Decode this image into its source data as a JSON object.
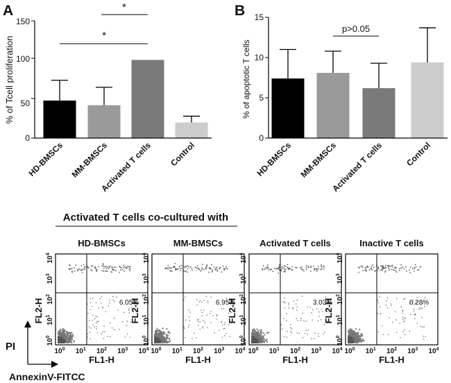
{
  "panel_a": {
    "letter": "A",
    "ylabel": "% of Tcell proliferation",
    "ticks": [
      "0",
      "50",
      "100",
      "150"
    ],
    "sig_top": "*",
    "sig_long": "*"
  },
  "panel_b": {
    "letter": "B",
    "ylabel": "% of apoptotic T cells",
    "ticks": [
      "0",
      "5",
      "10",
      "15"
    ],
    "sig": "p>0.05"
  },
  "flow": {
    "group_title": "Activated T cells co-cultured with",
    "plots": [
      {
        "title": "HD-BMSCs",
        "percent": "6.05%",
        "yaxis": "FL2-H",
        "xaxis": "FL1-H"
      },
      {
        "title": "MM-BMSCs",
        "percent": "6.95%",
        "yaxis": "FL2-H",
        "xaxis": "FL1-H"
      },
      {
        "title": "Activated T cells",
        "percent": "3.03%",
        "yaxis": "FL2-H",
        "xaxis": "FL1-H"
      },
      {
        "title": "Inactive T cells",
        "percent": "6.28%",
        "yaxis": "FL2-H",
        "xaxis": "FL1-H"
      }
    ],
    "decades": [
      "10",
      "10",
      "10",
      "10",
      "10"
    ],
    "exponents": [
      "0",
      "1",
      "2",
      "3",
      "4"
    ],
    "pi_label": "PI",
    "annexin_label": "AnnexinV-FITCC"
  },
  "chart_data": [
    {
      "type": "bar",
      "panel": "A",
      "categories": [
        "HD-BMSCs",
        "MM-BMSCs",
        "Activated T cells",
        "Control"
      ],
      "values": [
        48,
        42,
        100,
        20
      ],
      "errors": [
        26,
        23,
        0,
        8
      ],
      "colors": [
        "#000000",
        "#9a9a9a",
        "#7a7a7a",
        "#cccccc"
      ],
      "ylabel": "% of Tcell proliferation",
      "ylim": [
        0,
        150
      ],
      "yticks": [
        0,
        50,
        100,
        150
      ],
      "annotations": [
        {
          "text": "*",
          "between": [
            "MM-BMSCs",
            "Activated T cells"
          ]
        },
        {
          "text": "*",
          "between": [
            "HD-BMSCs",
            "Activated T cells"
          ]
        }
      ]
    },
    {
      "type": "bar",
      "panel": "B",
      "categories": [
        "HD-BMSCs",
        "MM-BMSCs",
        "Activated T cells",
        "Control"
      ],
      "values": [
        7.4,
        8.1,
        6.2,
        9.4
      ],
      "errors": [
        3.6,
        2.7,
        3.1,
        4.3
      ],
      "colors": [
        "#000000",
        "#9a9a9a",
        "#7a7a7a",
        "#cccccc"
      ],
      "ylabel": "% of apoptotic T cells",
      "ylim": [
        0,
        15
      ],
      "yticks": [
        0,
        5,
        10,
        15
      ],
      "annotations": [
        {
          "text": "p>0.05",
          "between": [
            "MM-BMSCs",
            "Activated T cells"
          ]
        }
      ]
    }
  ]
}
